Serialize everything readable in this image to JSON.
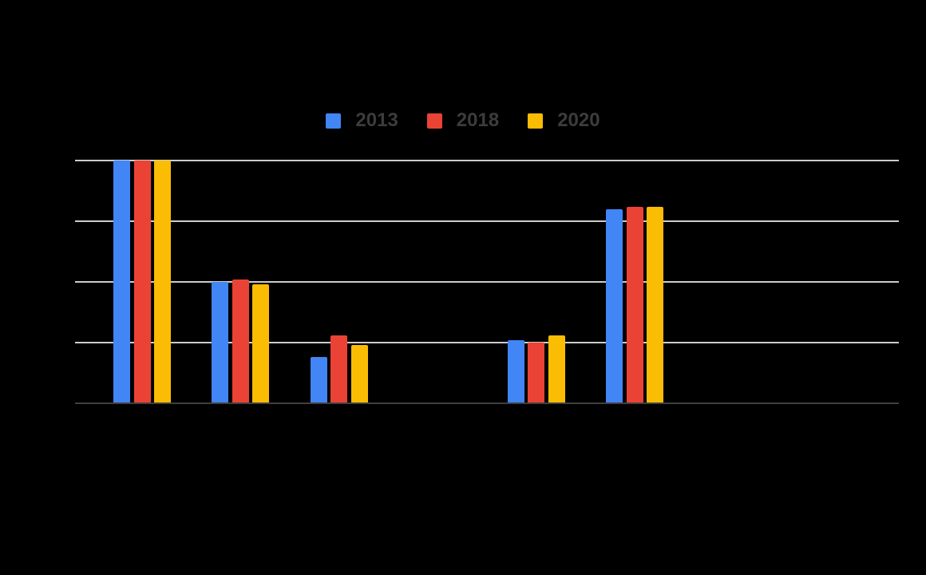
{
  "chart_data": {
    "type": "bar",
    "legend": {
      "position": "top",
      "entries": [
        "2013",
        "2018",
        "2020"
      ]
    },
    "categories": [
      "",
      "",
      "",
      "",
      "",
      ""
    ],
    "series": [
      {
        "name": "2013",
        "color": "#4285f4",
        "values": [
          100,
          50,
          19,
          0,
          26,
          80
        ]
      },
      {
        "name": "2018",
        "color": "#ea4335",
        "values": [
          100,
          51,
          28,
          0,
          25,
          81
        ]
      },
      {
        "name": "2020",
        "color": "#fbbc04",
        "values": [
          100,
          49,
          24,
          0,
          28,
          81
        ]
      }
    ],
    "ylim": [
      0,
      100
    ],
    "gridline_step": 25,
    "grid": true,
    "axis_tick_labels_visible": false,
    "title_visible": false,
    "colors": {
      "background": "#000000",
      "gridline": "#cccccc",
      "baseline": "#404040",
      "legend_text": "#3c3c3c"
    }
  }
}
